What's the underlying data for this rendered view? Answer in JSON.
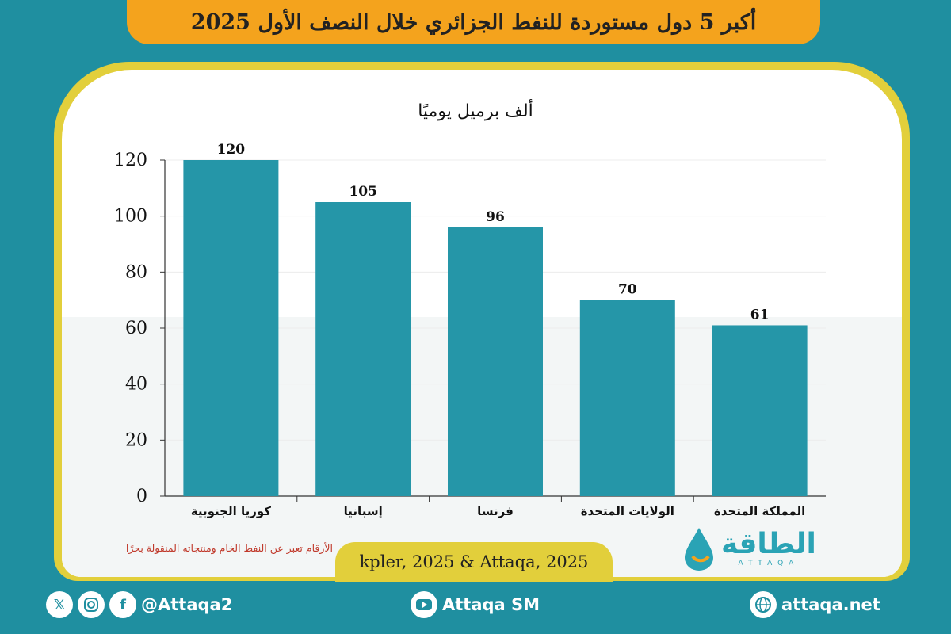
{
  "header": {
    "title": "أكبر 5 دول مستوردة للنفط الجزائري خلال النصف الأول 2025"
  },
  "chart_data": {
    "type": "bar",
    "title": "أكبر 5 دول مستوردة للنفط الجزائري خلال النصف الأول 2025",
    "ylabel": "ألف برميل يوميًا",
    "xlabel": "",
    "categories": [
      "كوريا الجنوبية",
      "إسبانيا",
      "فرنسا",
      "الولايات المتحدة",
      "المملكة المتحدة"
    ],
    "values": [
      120,
      105,
      96,
      70,
      61
    ],
    "ylim": [
      0,
      120
    ],
    "yticks": [
      0,
      20,
      40,
      60,
      80,
      100,
      120
    ],
    "grid": true,
    "bar_color": "#2596a8"
  },
  "note": "الأرقام تعبر عن النفط الخام ومنتجاته المنقولة بحرًا",
  "source": "kpler, 2025 & Attaqa, 2025",
  "logo": {
    "arabic": "الطاقة",
    "latin": "ATTAQA",
    "icon": "oil-drop-icon"
  },
  "footer": {
    "social_handle": "@Attaqa2",
    "social_icons": [
      "x-icon",
      "instagram-icon",
      "facebook-icon"
    ],
    "youtube": "Attaqa SM",
    "website": "attaqa.net"
  },
  "colors": {
    "background": "#1f8fa0",
    "title_bar": "#f4a31d",
    "frame": "#e2cf3b",
    "bar": "#2596a8",
    "note": "#c0392b"
  }
}
